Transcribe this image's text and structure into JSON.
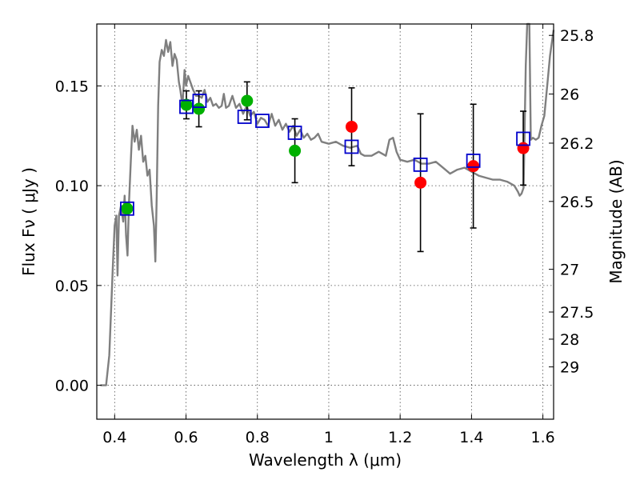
{
  "chart_data": {
    "type": "scatter",
    "title": "",
    "xlabel": "Wavelength  λ (μm)",
    "ylabel": "Flux  Fν  ( μJy )",
    "ylabel_right": "Magnitude (AB)",
    "xlim": [
      0.35,
      1.63
    ],
    "ylim": [
      -0.017,
      0.181
    ],
    "grid": true,
    "x_ticks": [
      0.4,
      0.6,
      0.8,
      1.0,
      1.2,
      1.4,
      1.6
    ],
    "x_tick_labels": [
      "0.4",
      "0.6",
      "0.8",
      "1",
      "1.2",
      "1.4",
      "1.6"
    ],
    "y_ticks": [
      0.0,
      0.05,
      0.1,
      0.15
    ],
    "y_tick_labels": [
      "0.00",
      "0.05",
      "0.10",
      "0.15"
    ],
    "right_ticks": [
      {
        "label": "25.8",
        "flux": 0.1753
      },
      {
        "label": "26",
        "flux": 0.1459
      },
      {
        "label": "26.2",
        "flux": 0.1213
      },
      {
        "label": "26.5",
        "flux": 0.0921
      },
      {
        "label": "27",
        "flux": 0.0581
      },
      {
        "label": "27.5",
        "flux": 0.0367
      },
      {
        "label": "28",
        "flux": 0.0231
      },
      {
        "label": "29",
        "flux": 0.0092
      }
    ],
    "series": [
      {
        "kind": "line",
        "color": "#7f7f7f",
        "points": [
          [
            0.36,
            0.0
          ],
          [
            0.376,
            0.0
          ],
          [
            0.385,
            0.015
          ],
          [
            0.395,
            0.06
          ],
          [
            0.4,
            0.08
          ],
          [
            0.405,
            0.085
          ],
          [
            0.408,
            0.055
          ],
          [
            0.412,
            0.085
          ],
          [
            0.418,
            0.09
          ],
          [
            0.424,
            0.082
          ],
          [
            0.428,
            0.095
          ],
          [
            0.432,
            0.075
          ],
          [
            0.436,
            0.065
          ],
          [
            0.44,
            0.09
          ],
          [
            0.446,
            0.115
          ],
          [
            0.45,
            0.13
          ],
          [
            0.456,
            0.122
          ],
          [
            0.462,
            0.128
          ],
          [
            0.468,
            0.118
          ],
          [
            0.474,
            0.125
          ],
          [
            0.48,
            0.112
          ],
          [
            0.486,
            0.115
          ],
          [
            0.492,
            0.105
          ],
          [
            0.498,
            0.108
          ],
          [
            0.504,
            0.09
          ],
          [
            0.51,
            0.08
          ],
          [
            0.514,
            0.062
          ],
          [
            0.518,
            0.095
          ],
          [
            0.522,
            0.14
          ],
          [
            0.526,
            0.162
          ],
          [
            0.532,
            0.168
          ],
          [
            0.538,
            0.165
          ],
          [
            0.544,
            0.173
          ],
          [
            0.55,
            0.167
          ],
          [
            0.556,
            0.172
          ],
          [
            0.562,
            0.16
          ],
          [
            0.568,
            0.166
          ],
          [
            0.574,
            0.163
          ],
          [
            0.58,
            0.152
          ],
          [
            0.584,
            0.148
          ],
          [
            0.59,
            0.14
          ],
          [
            0.596,
            0.158
          ],
          [
            0.6,
            0.15
          ],
          [
            0.606,
            0.155
          ],
          [
            0.612,
            0.152
          ],
          [
            0.62,
            0.148
          ],
          [
            0.628,
            0.145
          ],
          [
            0.636,
            0.145
          ],
          [
            0.644,
            0.144
          ],
          [
            0.652,
            0.148
          ],
          [
            0.66,
            0.142
          ],
          [
            0.668,
            0.144
          ],
          [
            0.676,
            0.14
          ],
          [
            0.684,
            0.141
          ],
          [
            0.692,
            0.139
          ],
          [
            0.7,
            0.14
          ],
          [
            0.706,
            0.146
          ],
          [
            0.712,
            0.139
          ],
          [
            0.72,
            0.14
          ],
          [
            0.73,
            0.145
          ],
          [
            0.74,
            0.139
          ],
          [
            0.75,
            0.141
          ],
          [
            0.76,
            0.136
          ],
          [
            0.77,
            0.14
          ],
          [
            0.78,
            0.135
          ],
          [
            0.79,
            0.137
          ],
          [
            0.8,
            0.131
          ],
          [
            0.81,
            0.134
          ],
          [
            0.82,
            0.133
          ],
          [
            0.83,
            0.13
          ],
          [
            0.84,
            0.136
          ],
          [
            0.85,
            0.13
          ],
          [
            0.86,
            0.133
          ],
          [
            0.87,
            0.128
          ],
          [
            0.88,
            0.131
          ],
          [
            0.89,
            0.127
          ],
          [
            0.9,
            0.13
          ],
          [
            0.91,
            0.125
          ],
          [
            0.92,
            0.128
          ],
          [
            0.93,
            0.124
          ],
          [
            0.94,
            0.126
          ],
          [
            0.95,
            0.123
          ],
          [
            0.96,
            0.124
          ],
          [
            0.97,
            0.126
          ],
          [
            0.98,
            0.122
          ],
          [
            1.0,
            0.121
          ],
          [
            1.02,
            0.122
          ],
          [
            1.04,
            0.12
          ],
          [
            1.06,
            0.119
          ],
          [
            1.08,
            0.12
          ],
          [
            1.09,
            0.116
          ],
          [
            1.1,
            0.115
          ],
          [
            1.12,
            0.115
          ],
          [
            1.14,
            0.117
          ],
          [
            1.16,
            0.115
          ],
          [
            1.17,
            0.123
          ],
          [
            1.18,
            0.124
          ],
          [
            1.19,
            0.117
          ],
          [
            1.2,
            0.113
          ],
          [
            1.22,
            0.112
          ],
          [
            1.24,
            0.113
          ],
          [
            1.26,
            0.111
          ],
          [
            1.28,
            0.111
          ],
          [
            1.3,
            0.112
          ],
          [
            1.32,
            0.109
          ],
          [
            1.34,
            0.106
          ],
          [
            1.36,
            0.108
          ],
          [
            1.38,
            0.109
          ],
          [
            1.4,
            0.107
          ],
          [
            1.42,
            0.105
          ],
          [
            1.44,
            0.104
          ],
          [
            1.46,
            0.103
          ],
          [
            1.48,
            0.103
          ],
          [
            1.5,
            0.102
          ],
          [
            1.52,
            0.1
          ],
          [
            1.53,
            0.097
          ],
          [
            1.535,
            0.095
          ],
          [
            1.54,
            0.096
          ],
          [
            1.546,
            0.099
          ],
          [
            1.552,
            0.16
          ],
          [
            1.556,
            0.181
          ],
          [
            1.562,
            0.181
          ],
          [
            1.566,
            0.123
          ],
          [
            1.572,
            0.124
          ],
          [
            1.58,
            0.123
          ],
          [
            1.588,
            0.124
          ],
          [
            1.596,
            0.13
          ],
          [
            1.604,
            0.135
          ],
          [
            1.612,
            0.15
          ],
          [
            1.62,
            0.165
          ],
          [
            1.63,
            0.178
          ]
        ]
      },
      {
        "kind": "open-square",
        "color": "#0000cc",
        "points": [
          [
            0.435,
            0.0885
          ],
          [
            0.601,
            0.1395
          ],
          [
            0.638,
            0.1425
          ],
          [
            0.764,
            0.1345
          ],
          [
            0.814,
            0.1325
          ],
          [
            0.905,
            0.1265
          ],
          [
            1.064,
            0.1195
          ],
          [
            1.257,
            0.1105
          ],
          [
            1.405,
            0.1125
          ],
          [
            1.545,
            0.1235
          ]
        ]
      },
      {
        "kind": "filled-circle",
        "color": "#00b000",
        "points": [
          [
            0.435,
            0.0885
          ],
          [
            0.601,
            0.1405
          ],
          [
            0.636,
            0.1385
          ],
          [
            0.771,
            0.1425
          ],
          [
            0.905,
            0.1175
          ]
        ],
        "yerr": [
          0,
          0.007,
          0.009,
          0.0095,
          0.016
        ]
      },
      {
        "kind": "filled-circle",
        "color": "#ff0000",
        "points": [
          [
            1.064,
            0.1295
          ],
          [
            1.257,
            0.1015
          ],
          [
            1.405,
            0.1098
          ],
          [
            1.545,
            0.1188
          ]
        ],
        "yerr": [
          0.0195,
          0.0345,
          0.031,
          0.0185
        ]
      }
    ]
  }
}
